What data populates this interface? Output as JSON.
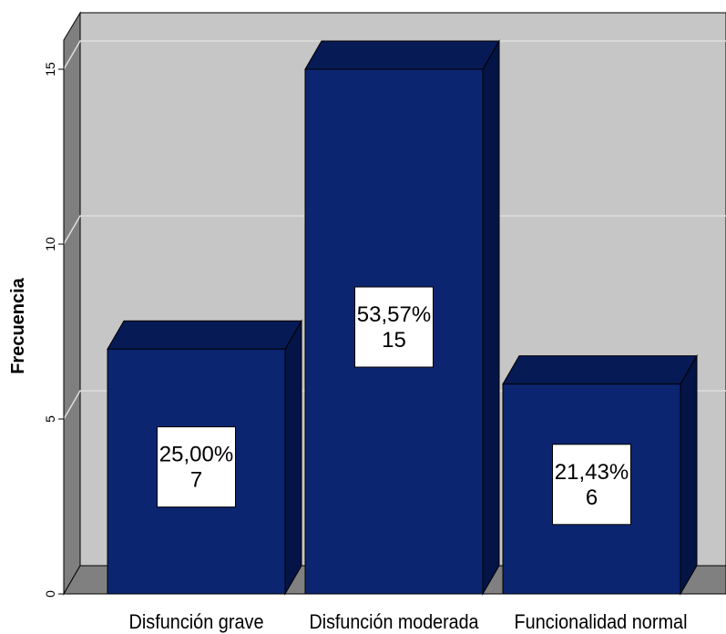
{
  "chart_data": {
    "type": "bar",
    "categories": [
      "Disfunción grave",
      "Disfunción moderada",
      "Funcionalidad normal"
    ],
    "values": [
      7,
      15,
      6
    ],
    "percent_labels": [
      "25,00%",
      "53,57%",
      "21,43%"
    ],
    "count_labels": [
      "7",
      "15",
      "6"
    ],
    "xlabel": "",
    "ylabel": "Frecuencia",
    "ylim": [
      0,
      16.5
    ],
    "yticks": [
      0,
      5,
      10,
      15
    ],
    "grid": true,
    "legend": "none",
    "colors": {
      "bar_front": "#0b2570",
      "bar_top": "#061a55",
      "bar_side": "#041446",
      "plot_back": "#c6c6c6",
      "plot_left_wall": "#7f7f7f",
      "plot_floor": "#808080",
      "grid": "#dedede"
    }
  }
}
